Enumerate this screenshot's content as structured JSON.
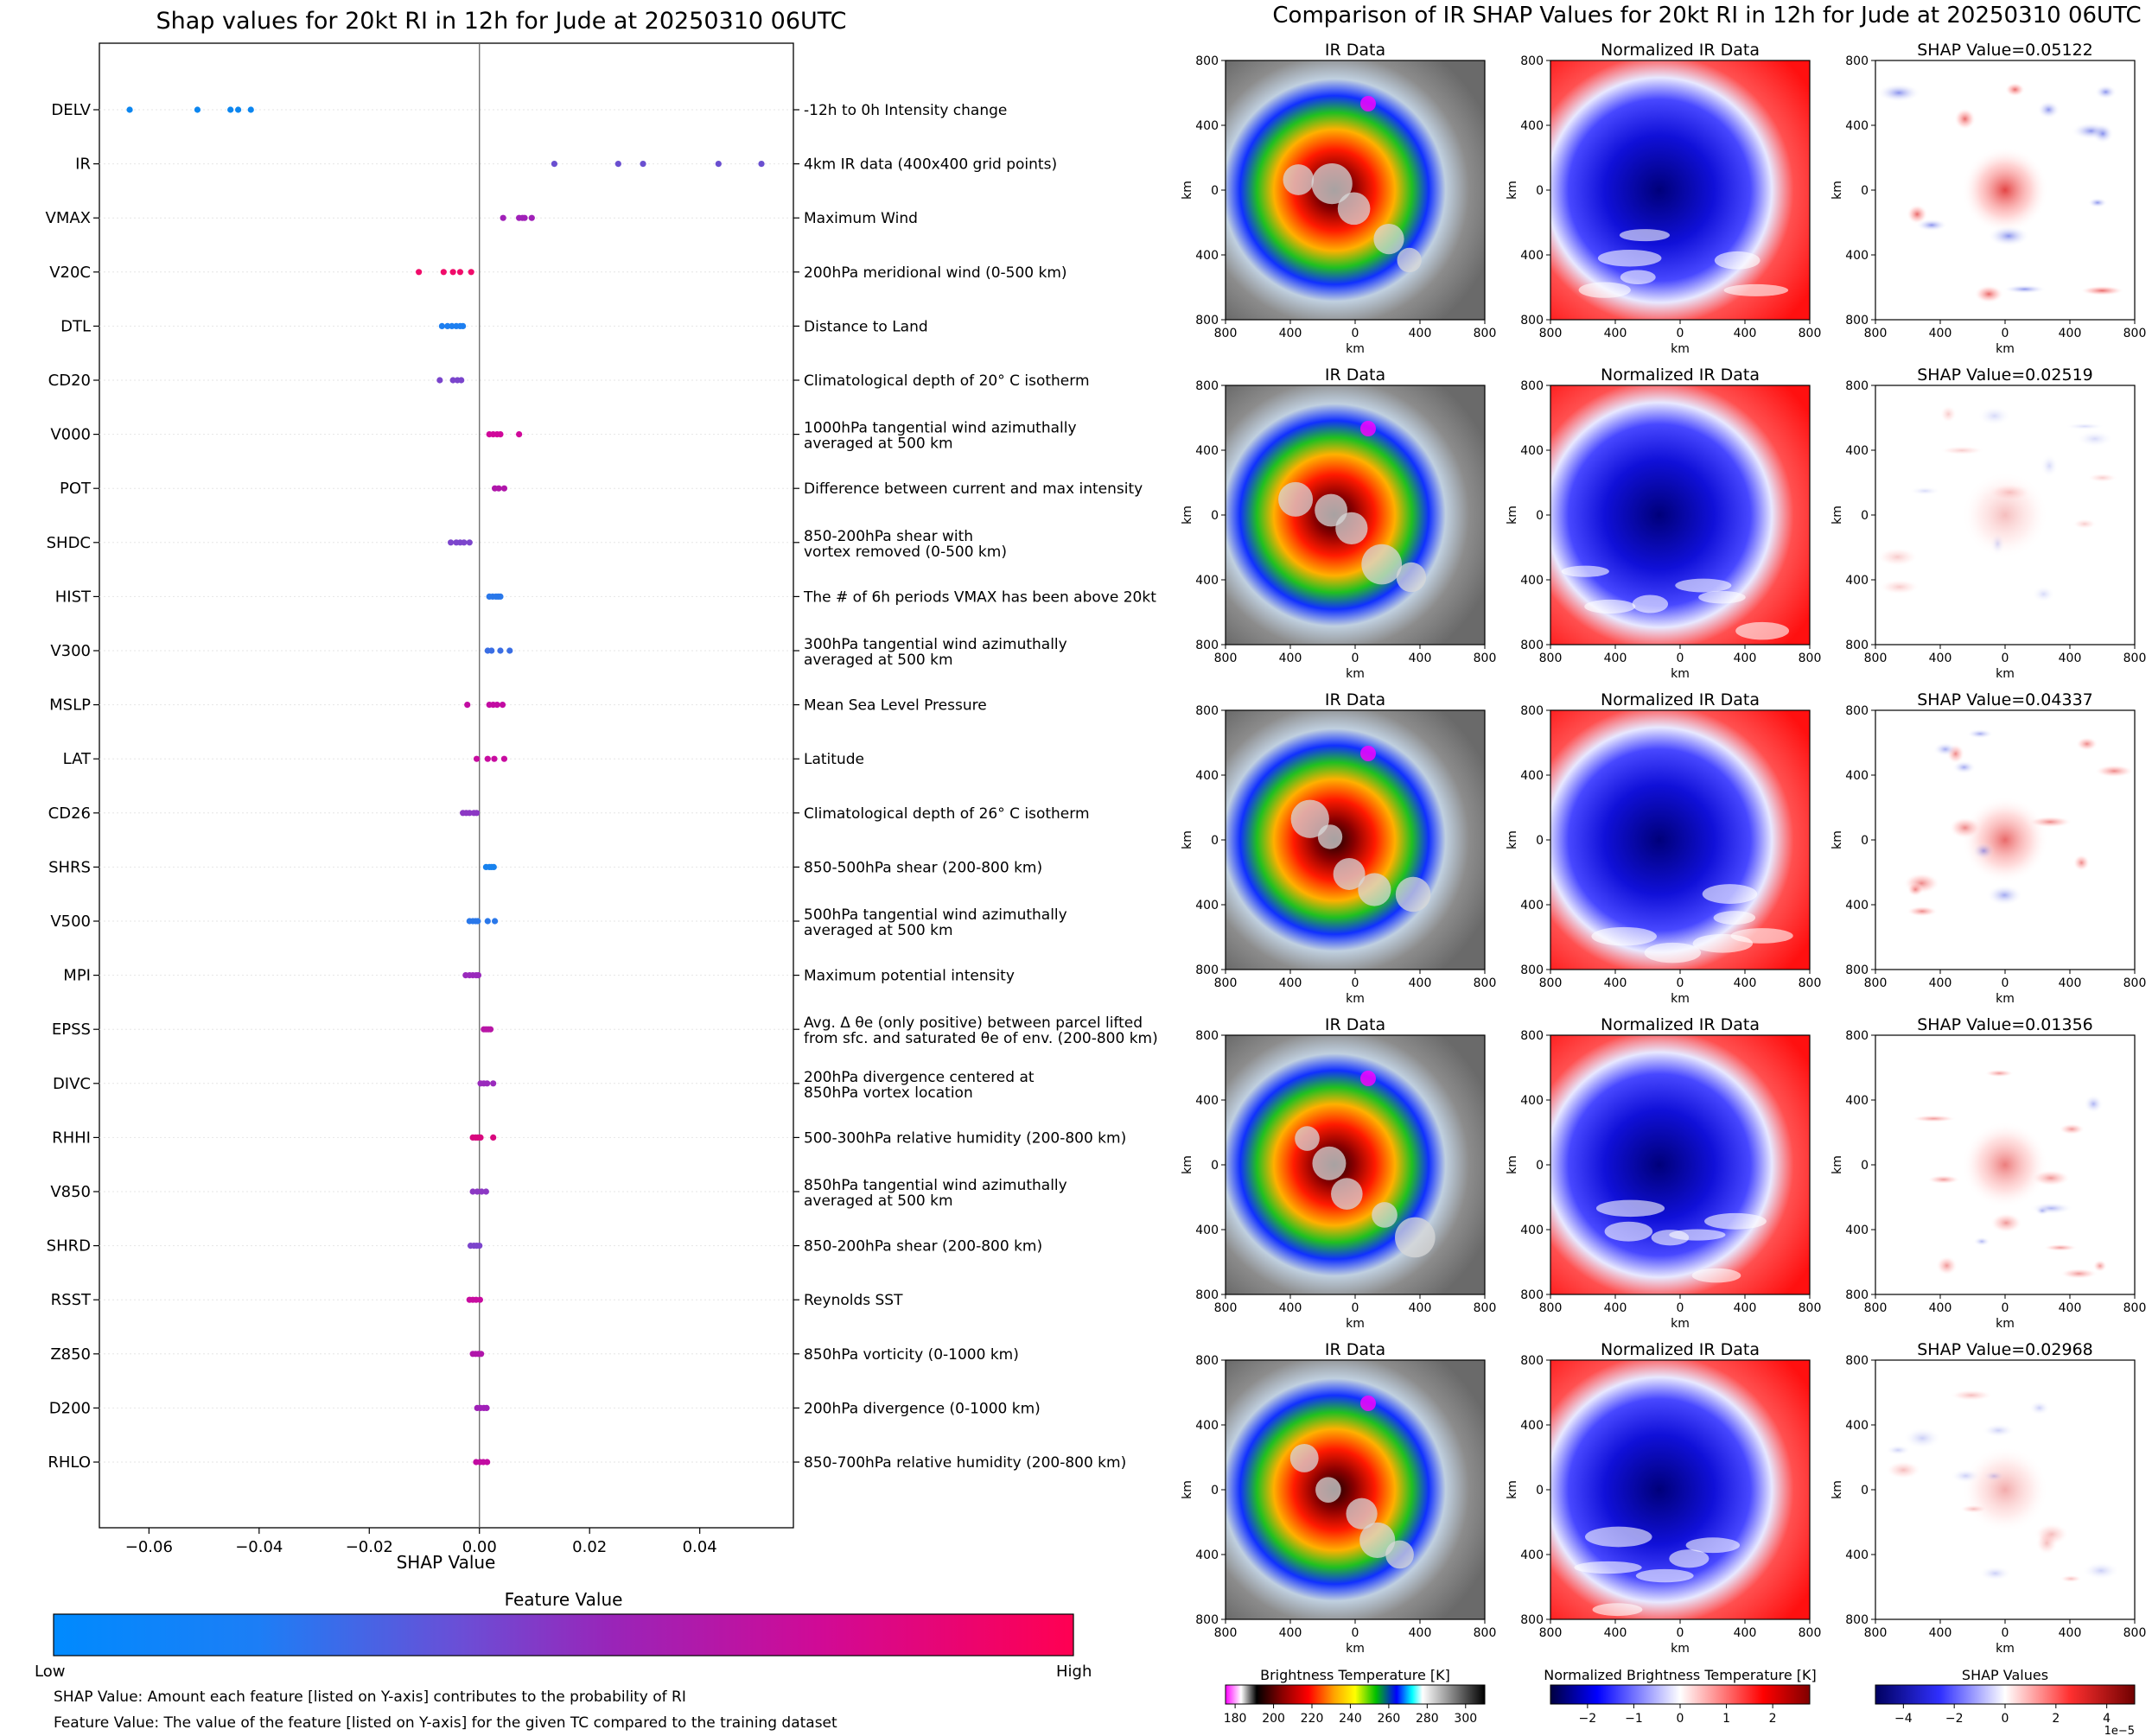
{
  "left_chart": {
    "title": "Shap values for 20kt RI in 12h for Jude at 20250310 06UTC",
    "xlabel": "SHAP Value",
    "x_ticks": [
      "−0.06",
      "−0.04",
      "−0.02",
      "0.00",
      "0.02",
      "0.04"
    ],
    "colorbar_title": "Feature Value",
    "colorbar_low": "Low",
    "colorbar_high": "High",
    "note_1": "SHAP Value: Amount each feature [listed on Y-axis] contributes to the probability of RI",
    "note_2": "Feature Value: The value of the feature [listed on Y-axis] for the given TC compared to the training dataset"
  },
  "right_panel": {
    "title": "Comparison of IR SHAP Values for 20kt RI in 12h for Jude at 20250310 06UTC",
    "col_titles": [
      "IR Data",
      "Normalized IR Data"
    ],
    "axis_unit": "km",
    "tick_labels": [
      "800",
      "400",
      "0",
      "400",
      "800"
    ],
    "shap_titles": [
      "SHAP Value=0.05122",
      "SHAP Value=0.02519",
      "SHAP Value=0.04337",
      "SHAP Value=0.01356",
      "SHAP Value=0.02968"
    ],
    "colorbars": [
      {
        "title": "Brightness Temperature [K]",
        "ticks": [
          "180",
          "200",
          "220",
          "240",
          "260",
          "280",
          "300"
        ]
      },
      {
        "title": "Normalized Brightness Temperature [K]",
        "ticks": [
          "−2",
          "−1",
          "0",
          "1",
          "2"
        ]
      },
      {
        "title": "SHAP Values",
        "ticks": [
          "−4",
          "−2",
          "0",
          "2",
          "4"
        ],
        "offset": "1e−5"
      }
    ]
  },
  "chart_data": {
    "type": "scatter",
    "title": "Shap values for 20kt RI in 12h for Jude at 20250310 06UTC",
    "xlabel": "SHAP Value",
    "xlim": [
      -0.069,
      0.057
    ],
    "colors": {
      "low": "#008afe",
      "mid": "#8b34c4",
      "high": "#ff0052"
    },
    "features": [
      {
        "code": "DELV",
        "desc": [
          "-12h to 0h Intensity change"
        ],
        "values": [
          -0.0635,
          -0.0512,
          -0.0452,
          -0.0438,
          -0.0415
        ],
        "color": "#0c86f0"
      },
      {
        "code": "IR",
        "desc": [
          "4km IR data (400x400 grid points)"
        ],
        "values": [
          0.0136,
          0.0252,
          0.0297,
          0.0434,
          0.0512
        ],
        "color": "#6a4fd0"
      },
      {
        "code": "VMAX",
        "desc": [
          "Maximum Wind"
        ],
        "values": [
          0.0043,
          0.0072,
          0.0078,
          0.0082,
          0.0095
        ],
        "color": "#a020b8"
      },
      {
        "code": "V20C",
        "desc": [
          "200hPa meridional wind (0-500 km)"
        ],
        "values": [
          -0.011,
          -0.0065,
          -0.0048,
          -0.0035,
          -0.0015
        ],
        "color": "#f00c6a"
      },
      {
        "code": "DTL",
        "desc": [
          "Distance to Land"
        ],
        "values": [
          -0.0068,
          -0.0058,
          -0.005,
          -0.0042,
          -0.0035,
          -0.003
        ],
        "color": "#1e7ff0"
      },
      {
        "code": "CD20",
        "desc": [
          "Climatological depth of 20° C isotherm"
        ],
        "values": [
          -0.0072,
          -0.0048,
          -0.004,
          -0.0033
        ],
        "color": "#7a44cc"
      },
      {
        "code": "V000",
        "desc": [
          "1000hPa tangential wind azimuthally",
          "averaged at 500 km"
        ],
        "values": [
          0.0018,
          0.0025,
          0.0032,
          0.0038,
          0.0072
        ],
        "color": "#d0089a"
      },
      {
        "code": "POT",
        "desc": [
          "Difference between current and max intensity"
        ],
        "values": [
          0.0028,
          0.0035,
          0.0045
        ],
        "color": "#b016aa"
      },
      {
        "code": "SHDC",
        "desc": [
          "850-200hPa shear with",
          "vortex removed (0-500 km)"
        ],
        "values": [
          -0.0052,
          -0.0042,
          -0.0035,
          -0.0028,
          -0.0018
        ],
        "color": "#7c45cc"
      },
      {
        "code": "HIST",
        "desc": [
          "The # of 6h periods VMAX has been above 20kt"
        ],
        "values": [
          0.0018,
          0.0024,
          0.003,
          0.0034,
          0.0038
        ],
        "color": "#2a78ea"
      },
      {
        "code": "V300",
        "desc": [
          "300hPa tangential wind azimuthally",
          "averaged at 500 km"
        ],
        "values": [
          0.0015,
          0.0022,
          0.0038,
          0.0055
        ],
        "color": "#3a6ee4"
      },
      {
        "code": "MSLP",
        "desc": [
          "Mean Sea Level Pressure"
        ],
        "values": [
          -0.0022,
          0.0018,
          0.0025,
          0.0032,
          0.0042
        ],
        "color": "#c20ca2"
      },
      {
        "code": "LAT",
        "desc": [
          "Latitude"
        ],
        "values": [
          -0.0005,
          0.0015,
          0.0027,
          0.0045
        ],
        "color": "#c80ca0"
      },
      {
        "code": "CD26",
        "desc": [
          "Climatological depth of 26° C isotherm"
        ],
        "values": [
          -0.003,
          -0.0024,
          -0.0018,
          -0.001,
          -0.0005
        ],
        "color": "#8c38c4"
      },
      {
        "code": "SHRS",
        "desc": [
          "850-500hPa shear (200-800 km)"
        ],
        "values": [
          0.0012,
          0.0018,
          0.0022,
          0.0026
        ],
        "color": "#1882ee"
      },
      {
        "code": "V500",
        "desc": [
          "500hPa tangential wind azimuthally",
          "averaged at 500 km"
        ],
        "values": [
          -0.0018,
          -0.0012,
          -0.0007,
          -0.0003,
          0.0015,
          0.0028
        ],
        "color": "#2a78ea"
      },
      {
        "code": "MPI",
        "desc": [
          "Maximum potential intensity"
        ],
        "values": [
          -0.0025,
          -0.0018,
          -0.0012,
          -0.0006,
          -0.0002
        ],
        "color": "#9a2abc"
      },
      {
        "code": "EPSS",
        "desc": [
          "Avg. Δ θe (only positive) between parcel lifted",
          "from sfc. and saturated θe of env. (200-800 km)"
        ],
        "values": [
          0.0008,
          0.0012,
          0.0016,
          0.002
        ],
        "color": "#b816a6"
      },
      {
        "code": "DIVC",
        "desc": [
          "200hPa divergence centered at",
          "850hPa vortex location"
        ],
        "values": [
          0.0002,
          0.0008,
          0.0014,
          0.0025
        ],
        "color": "#9a2abc"
      },
      {
        "code": "RHHI",
        "desc": [
          "500-300hPa relative humidity (200-800 km)"
        ],
        "values": [
          -0.0012,
          -0.0007,
          -0.0003,
          0.0002,
          0.0025
        ],
        "color": "#d8087e"
      },
      {
        "code": "V850",
        "desc": [
          "850hPa tangential wind azimuthally",
          "averaged at 500 km"
        ],
        "values": [
          -0.0012,
          -0.0004,
          0.0004,
          0.0012
        ],
        "color": "#8c38c4"
      },
      {
        "code": "SHRD",
        "desc": [
          "850-200hPa shear (200-800 km)"
        ],
        "values": [
          -0.0016,
          -0.001,
          -0.0005,
          0.0
        ],
        "color": "#7c45cc"
      },
      {
        "code": "RSST",
        "desc": [
          "Reynolds SST"
        ],
        "values": [
          -0.0018,
          -0.0012,
          -0.0006,
          0.0001
        ],
        "color": "#c80ca0"
      },
      {
        "code": "Z850",
        "desc": [
          "850hPa vorticity (0-1000 km)"
        ],
        "values": [
          -0.0012,
          -0.0007,
          -0.0002,
          0.0003
        ],
        "color": "#b016aa"
      },
      {
        "code": "D200",
        "desc": [
          "200hPa divergence (0-1000 km)"
        ],
        "values": [
          -0.0004,
          0.0002,
          0.0008,
          0.0013
        ],
        "color": "#a020b8"
      },
      {
        "code": "RHLO",
        "desc": [
          "850-700hPa relative humidity (200-800 km)"
        ],
        "values": [
          -0.0006,
          0.0001,
          0.0007,
          0.0014
        ],
        "color": "#c20ca2"
      }
    ]
  }
}
